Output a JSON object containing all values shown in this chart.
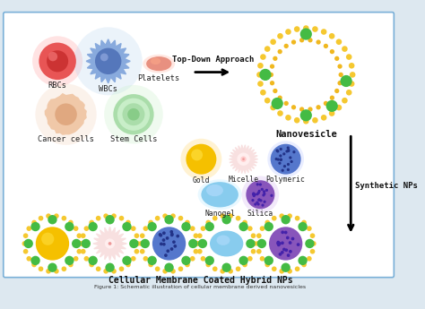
{
  "background_color": "#ffffff",
  "border_color": "#7ab0d8",
  "fig_bg": "#dde8f0",
  "caption": "Figure 1: Schematic illustration of cellular membrane derived nanovesicles",
  "cell_labels": [
    "RBCs",
    "WBCs",
    "Platelets",
    "Cancer cells",
    "Stem Cells"
  ],
  "np_labels": [
    "Gold",
    "Micelle",
    "Polymeric",
    "Nanogel",
    "Silica"
  ],
  "top_label": "Top-Down Approach",
  "nanovesicle_label": "Nanovesicle",
  "synth_label": "Synthetic NPs",
  "bottom_label": "Cellular Membrane Coated Hybrid NPs"
}
